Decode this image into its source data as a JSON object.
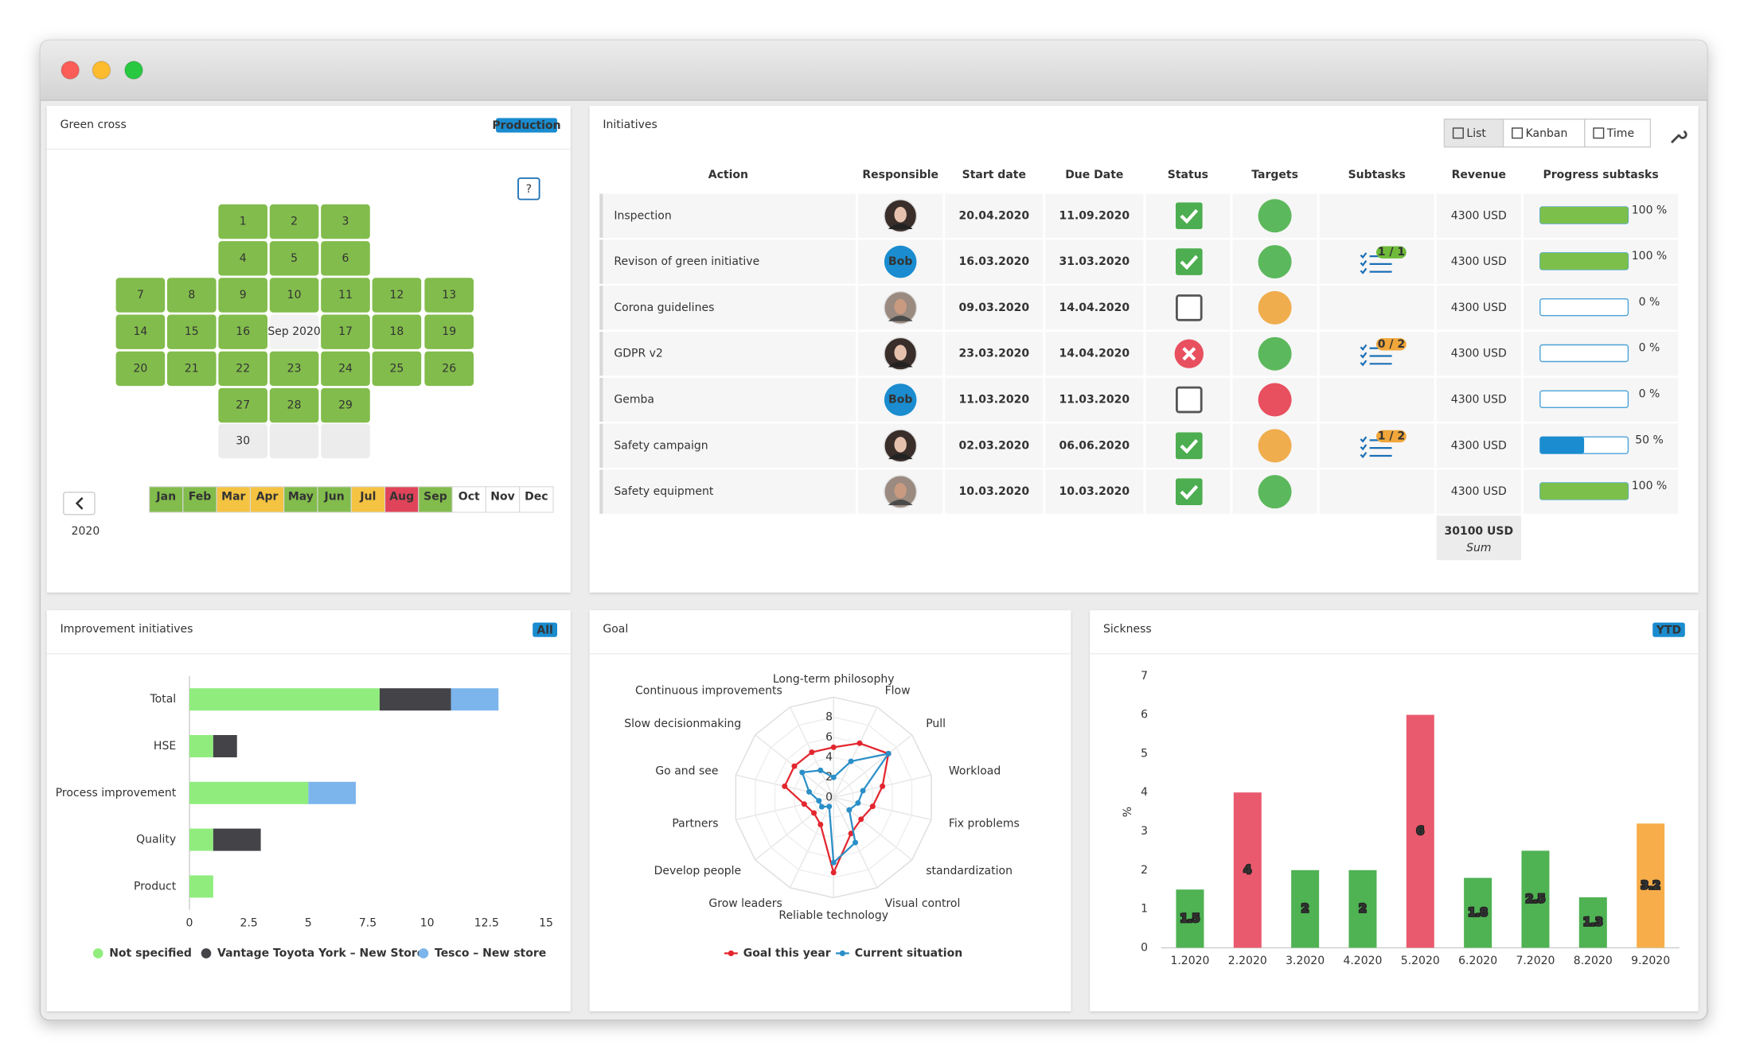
{
  "green_cross": {
    "title": "Green cross",
    "badge": "Production",
    "help": "?",
    "center_label": "Sep 2020",
    "year": "2020",
    "days": [
      {
        "label": "1",
        "color": "#82bc4c"
      },
      {
        "label": "2",
        "color": "#82bc4c"
      },
      {
        "label": "3",
        "color": "#82bc4c"
      },
      {
        "label": "4",
        "color": "#82bc4c"
      },
      {
        "label": "5",
        "color": "#82bc4c"
      },
      {
        "label": "6",
        "color": "#82bc4c"
      },
      {
        "label": "7",
        "color": "#82bc4c"
      },
      {
        "label": "8",
        "color": "#82bc4c"
      },
      {
        "label": "9",
        "color": "#82bc4c"
      },
      {
        "label": "10",
        "color": "#82bc4c"
      },
      {
        "label": "11",
        "color": "#82bc4c"
      },
      {
        "label": "12",
        "color": "#82bc4c"
      },
      {
        "label": "13",
        "color": "#82bc4c"
      },
      {
        "label": "14",
        "color": "#82bc4c"
      },
      {
        "label": "15",
        "color": "#82bc4c"
      },
      {
        "label": "16",
        "color": "#82bc4c"
      },
      {
        "label": "17",
        "color": "#82bc4c"
      },
      {
        "label": "18",
        "color": "#82bc4c"
      },
      {
        "label": "19",
        "color": "#82bc4c"
      },
      {
        "label": "20",
        "color": "#82bc4c"
      },
      {
        "label": "21",
        "color": "#82bc4c"
      },
      {
        "label": "22",
        "color": "#82bc4c"
      },
      {
        "label": "23",
        "color": "#82bc4c"
      },
      {
        "label": "24",
        "color": "#82bc4c"
      },
      {
        "label": "25",
        "color": "#82bc4c"
      },
      {
        "label": "26",
        "color": "#82bc4c"
      },
      {
        "label": "27",
        "color": "#82bc4c"
      },
      {
        "label": "28",
        "color": "#82bc4c"
      },
      {
        "label": "29",
        "color": "#82bc4c"
      },
      {
        "label": "30",
        "color": "#ececec"
      }
    ],
    "months": [
      {
        "label": "Jan",
        "color": "#82bc4c"
      },
      {
        "label": "Feb",
        "color": "#82bc4c"
      },
      {
        "label": "Mar",
        "color": "#f5c342"
      },
      {
        "label": "Apr",
        "color": "#f5c342"
      },
      {
        "label": "May",
        "color": "#82bc4c"
      },
      {
        "label": "Jun",
        "color": "#82bc4c"
      },
      {
        "label": "Jul",
        "color": "#f5c342"
      },
      {
        "label": "Aug",
        "color": "#e0445a"
      },
      {
        "label": "Sep",
        "color": "#82bc4c"
      },
      {
        "label": "Oct",
        "color": "#ffffff"
      },
      {
        "label": "Nov",
        "color": "#ffffff"
      },
      {
        "label": "Dec",
        "color": "#ffffff"
      }
    ]
  },
  "initiatives": {
    "title": "Initiatives",
    "views": [
      "List",
      "Kanban",
      "Time"
    ],
    "columns": [
      "Action",
      "Responsible",
      "Start date",
      "Due Date",
      "Status",
      "Targets",
      "Subtasks",
      "Revenue",
      "Progress subtasks"
    ],
    "rows": [
      {
        "action": "Inspection",
        "avatar": "woman",
        "start": "20.04.2020",
        "due": "11.09.2020",
        "due_color": "#1a7fc0",
        "status": "done",
        "target": "#5cb85c",
        "revenue": "4300 USD",
        "progress": 100,
        "progress_label": "100 %"
      },
      {
        "action": "Revison of green initiative",
        "responsible": "Bob",
        "start": "16.03.2020",
        "due": "31.03.2020",
        "due_color": "#1a7fc0",
        "status": "done",
        "target": "#5cb85c",
        "subtasks": "1 / 1",
        "subtasks_color": "#6fba3a",
        "revenue": "4300 USD",
        "progress": 100,
        "progress_label": "100 %"
      },
      {
        "action": "Corona guidelines",
        "avatar": "man",
        "start": "09.03.2020",
        "due": "14.04.2020",
        "due_color": "#d9363e",
        "status": "open",
        "target": "#f0ad4e",
        "revenue": "4300 USD",
        "progress": 0,
        "progress_label": "0 %"
      },
      {
        "action": "GDPR v2",
        "avatar": "woman",
        "start": "23.03.2020",
        "due": "14.04.2020",
        "due_color": "#d9363e",
        "status": "failed",
        "target": "#5cb85c",
        "subtasks": "0 / 2",
        "subtasks_color": "#f0a63a",
        "revenue": "4300 USD",
        "progress": 0,
        "progress_label": "0 %"
      },
      {
        "action": "Gemba",
        "responsible": "Bob",
        "start": "11.03.2020",
        "due": "11.03.2020",
        "due_color": "#d9363e",
        "status": "open",
        "target": "#e8505f",
        "revenue": "4300 USD",
        "progress": 0,
        "progress_label": "0 %"
      },
      {
        "action": "Safety campaign",
        "avatar": "woman",
        "start": "02.03.2020",
        "due": "06.06.2020",
        "due_color": "#1a7fc0",
        "status": "done",
        "target": "#f0ad4e",
        "subtasks": "1 / 2",
        "subtasks_color": "#f0a63a",
        "revenue": "4300 USD",
        "progress": 50,
        "progress_label": "50 %"
      },
      {
        "action": "Safety equipment",
        "avatar": "man",
        "start": "10.03.2020",
        "due": "10.03.2020",
        "due_color": "#1a7fc0",
        "status": "done",
        "target": "#5cb85c",
        "revenue": "4300 USD",
        "progress": 100,
        "progress_label": "100 %"
      }
    ],
    "sum": "30100 USD",
    "sum_label": "Sum"
  },
  "chart_data": [
    {
      "type": "hbar",
      "title": "Improvement initiatives",
      "badge": "All",
      "stacked": true,
      "categories": [
        "Total",
        "HSE",
        "Process improvement",
        "Quality",
        "Product"
      ],
      "series": [
        {
          "name": "Not specified",
          "color": "#90ed7d",
          "values": [
            8,
            1,
            5,
            1,
            1
          ]
        },
        {
          "name": "Vantage Toyota York – New Store",
          "color": "#434348",
          "values": [
            3,
            1,
            0,
            2,
            0
          ]
        },
        {
          "name": "Tesco – New store",
          "color": "#7cb5ec",
          "values": [
            2,
            0,
            2,
            0,
            0
          ]
        }
      ],
      "xlim": [
        0,
        15
      ],
      "xticks": [
        0,
        2.5,
        5,
        7.5,
        10,
        12.5,
        15
      ]
    },
    {
      "type": "radar",
      "title": "Goal",
      "categories": [
        "Long-term philosophy",
        "Flow",
        "Pull",
        "Workload",
        "Fix problems",
        "standardization",
        "Visual control",
        "Reliable technology",
        "Grow leaders",
        "Develop people",
        "Partners",
        "Go and see",
        "Slow decisionmaking",
        "Continuous improvements"
      ],
      "series": [
        {
          "name": "Goal this year",
          "color": "#e3262e",
          "values": [
            5,
            6,
            7,
            5,
            4,
            3.5,
            4,
            7.5,
            3,
            2.5,
            3,
            5,
            5,
            5
          ]
        },
        {
          "name": "Current situation",
          "color": "#2b8fc7",
          "values": [
            2,
            4,
            7,
            3,
            2.5,
            2,
            5,
            6.5,
            1,
            1.5,
            1.5,
            2.5,
            4,
            3
          ]
        }
      ],
      "ylim": [
        0,
        10
      ],
      "yticks": [
        0,
        2,
        4,
        6,
        8
      ]
    },
    {
      "type": "bar",
      "title": "Sickness",
      "badge": "YTD",
      "ylabel": "%",
      "categories": [
        "1.2020",
        "2.2020",
        "3.2020",
        "4.2020",
        "5.2020",
        "6.2020",
        "7.2020",
        "8.2020",
        "9.2020"
      ],
      "values": [
        1.5,
        4,
        2,
        2,
        6,
        1.8,
        2.5,
        1.3,
        3.2
      ],
      "colors": [
        "#4fb253",
        "#ea5a6e",
        "#4fb253",
        "#4fb253",
        "#ea5a6e",
        "#4fb253",
        "#4fb253",
        "#4fb253",
        "#f7ae4a"
      ],
      "ylim": [
        0,
        7
      ],
      "yticks": [
        0,
        1,
        2,
        3,
        4,
        5,
        6,
        7
      ]
    }
  ]
}
